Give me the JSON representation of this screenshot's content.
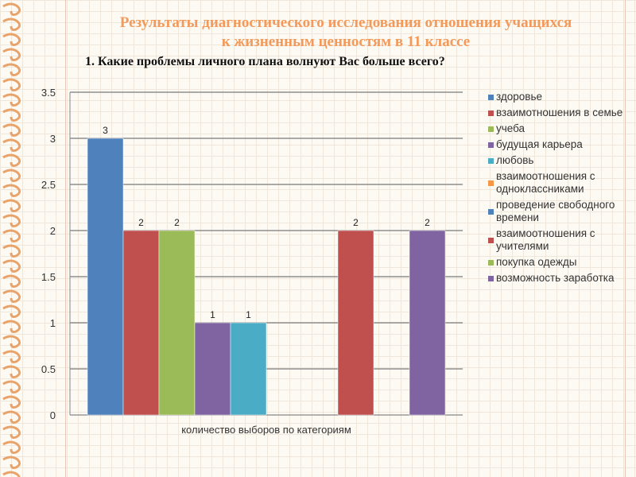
{
  "title_line1": "Результаты диагностического исследования отношения учащихся",
  "title_line2": "к жизненным ценностям в 11 классе",
  "question": "1. Какие проблемы личного плана волнуют Вас больше всего?",
  "chart_data": {
    "type": "bar",
    "xlabel": "количество выборов по категориям",
    "ylabel": "",
    "ylim": [
      0,
      3.5
    ],
    "yticks": [
      "0",
      "0.5",
      "1",
      "1.5",
      "2",
      "2.5",
      "3",
      "3.5"
    ],
    "grid": true,
    "legend_position": "right",
    "series": [
      {
        "name": "здоровье",
        "value": 3,
        "label": "3",
        "color": "#4f81bd"
      },
      {
        "name": "взаимотношения в семье",
        "value": 2,
        "label": "2",
        "color": "#c0504d"
      },
      {
        "name": "учеба",
        "value": 2,
        "label": "2",
        "color": "#9bbb59"
      },
      {
        "name": "будущая карьера",
        "value": 1,
        "label": "1",
        "color": "#8064a2"
      },
      {
        "name": "любовь",
        "value": 1,
        "label": "1",
        "color": "#4bacc6"
      },
      {
        "name": "взаимоотношения с одноклассниками",
        "value": 0,
        "label": "",
        "color": "#f79646"
      },
      {
        "name": "проведение свободного времени",
        "value": 0,
        "label": "",
        "color": "#4f81bd"
      },
      {
        "name": "взаимоотношения с учителями",
        "value": 2,
        "label": "2",
        "color": "#c0504d"
      },
      {
        "name": "покупка одежды",
        "value": 0,
        "label": "",
        "color": "#9bbb59"
      },
      {
        "name": "возможность заработка",
        "value": 2,
        "label": "2",
        "color": "#8064a2"
      }
    ]
  }
}
